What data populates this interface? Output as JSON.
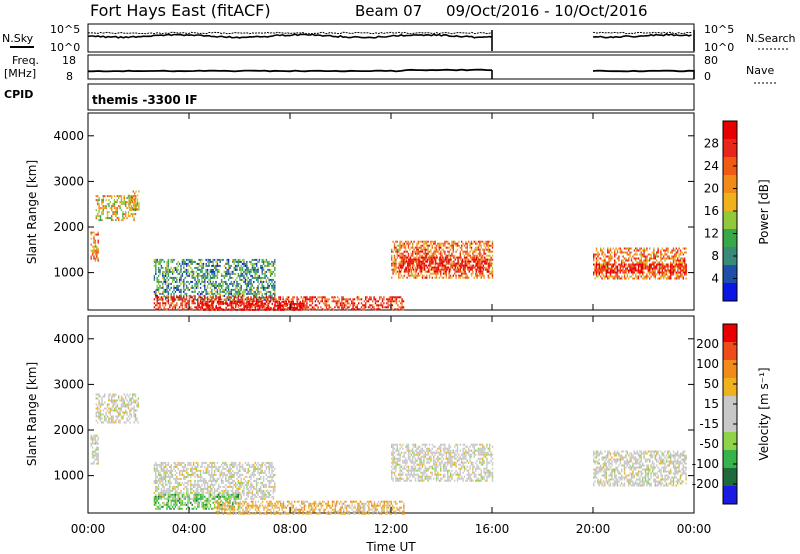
{
  "header": {
    "station": "Fort Hays East (fitACF)",
    "beam": "Beam 07",
    "dates": "09/Oct/2016 - 10/Oct/2016"
  },
  "strips": {
    "nsky_label": "N.Sky",
    "nsearch_label": "N.Search",
    "freq_label": "Freq.",
    "freq_unit": "[MHz]",
    "nave_label": "Nave",
    "cpid_label": "CPID",
    "cpid_value": "themis -3300 IF",
    "noise_ticks_left": [
      "10^5",
      "10^0"
    ],
    "noise_ticks_right": [
      "10^5",
      "10^0"
    ],
    "freq_ticks": [
      "18",
      "8"
    ],
    "nave_ticks": [
      "80",
      "0"
    ]
  },
  "colors": {
    "power_scale": [
      "#0a16e6",
      "#1f4fa8",
      "#3a8a7a",
      "#37a84a",
      "#93c83a",
      "#f0b21c",
      "#f28a1a",
      "#f05a14",
      "#e8261a",
      "#e80000"
    ],
    "velocity_scale": [
      "#1a1ae0",
      "#1e6a3a",
      "#36b34a",
      "#8fd34a",
      "#c8c8c8",
      "#c8c8c8",
      "#f0b21c",
      "#f08a1a",
      "#f04b1a",
      "#e80000"
    ]
  },
  "chart_data": [
    {
      "type": "heatmap",
      "panel": "power",
      "xlabel": "",
      "ylabel": "Slant Range [km]",
      "x_range_hours": [
        0,
        24
      ],
      "ylim": [
        180,
        4500
      ],
      "yticks": [
        "4000",
        "3000",
        "2000",
        "1000"
      ],
      "colorbar_label": "Power [dB]",
      "colorbar_ticks": [
        "28",
        "24",
        "20",
        "16",
        "12",
        "8",
        "4"
      ],
      "regions": [
        {
          "t0": 0.1,
          "t1": 0.4,
          "r0": 1250,
          "r1": 1900,
          "level": 0.65
        },
        {
          "t0": 0.3,
          "t1": 1.9,
          "r0": 2150,
          "r1": 2700,
          "level": 0.55
        },
        {
          "t0": 1.6,
          "t1": 2.0,
          "r0": 2400,
          "r1": 2800,
          "level": 0.6
        },
        {
          "t0": 2.6,
          "t1": 7.4,
          "r0": 400,
          "r1": 1300,
          "level": 0.3
        },
        {
          "t0": 2.6,
          "t1": 12.5,
          "r0": 200,
          "r1": 480,
          "level": 0.85
        },
        {
          "t0": 4.5,
          "t1": 8.5,
          "r0": 180,
          "r1": 380,
          "level": 1.0
        },
        {
          "t0": 12.0,
          "t1": 16.0,
          "r0": 900,
          "r1": 1700,
          "level": 0.7
        },
        {
          "t0": 12.3,
          "t1": 15.9,
          "r0": 1000,
          "r1": 1350,
          "level": 0.95
        },
        {
          "t0": 20.0,
          "t1": 23.7,
          "r0": 850,
          "r1": 1550,
          "level": 0.7
        },
        {
          "t0": 20.0,
          "t1": 23.7,
          "r0": 1000,
          "r1": 1200,
          "level": 0.95
        }
      ]
    },
    {
      "type": "heatmap",
      "panel": "velocity",
      "xlabel": "Time UT",
      "ylabel": "Slant Range [km]",
      "x_range_hours": [
        0,
        24
      ],
      "ylim": [
        180,
        4500
      ],
      "yticks": [
        "4000",
        "3000",
        "2000",
        "1000"
      ],
      "xticks": [
        "00:00",
        "04:00",
        "08:00",
        "12:00",
        "16:00",
        "20:00",
        "00:00"
      ],
      "colorbar_label": "Velocity [m s⁻¹]",
      "colorbar_ticks": [
        "200",
        "100",
        "50",
        "15",
        "-15",
        "-50",
        "-100",
        "-200"
      ],
      "regions": [
        {
          "t0": 0.1,
          "t1": 0.4,
          "r0": 1250,
          "r1": 1900,
          "level": 0.5
        },
        {
          "t0": 0.3,
          "t1": 2.0,
          "r0": 2150,
          "r1": 2800,
          "level": 0.5
        },
        {
          "t0": 2.6,
          "t1": 7.4,
          "r0": 500,
          "r1": 1300,
          "level": 0.5
        },
        {
          "t0": 2.6,
          "t1": 6.0,
          "r0": 250,
          "r1": 600,
          "level": 0.3
        },
        {
          "t0": 5.0,
          "t1": 12.5,
          "r0": 180,
          "r1": 450,
          "level": 0.65
        },
        {
          "t0": 12.0,
          "t1": 16.0,
          "r0": 900,
          "r1": 1700,
          "level": 0.5
        },
        {
          "t0": 20.0,
          "t1": 23.7,
          "r0": 800,
          "r1": 1550,
          "level": 0.5
        }
      ]
    }
  ]
}
